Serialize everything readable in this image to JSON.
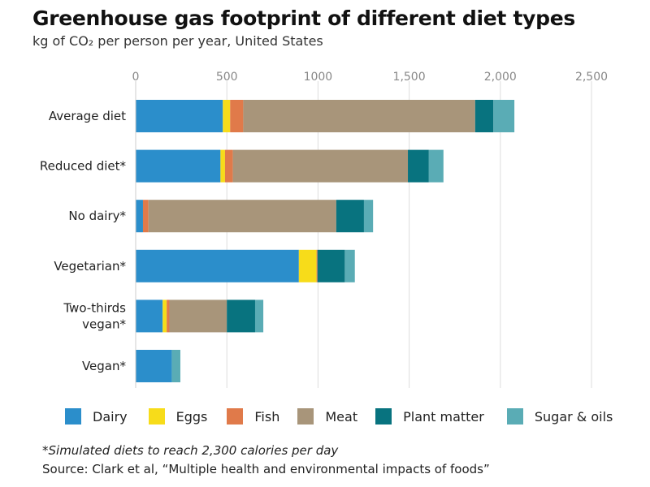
{
  "title": "Greenhouse gas footprint of different diet types",
  "subtitle": "kg of CO₂ per person per year, United States",
  "footnote": "*Simulated diets to reach 2,300 calories per day",
  "source": "Source: Clark et al, “Multiple health and environmental impacts of foods”",
  "chart_data": {
    "type": "bar",
    "orientation": "horizontal",
    "stacked": true,
    "title": "Greenhouse gas footprint of different diet types",
    "subtitle": "kg of CO₂ per person per year, United States",
    "xlim": [
      0,
      2500
    ],
    "x_ticks": [
      0,
      500,
      1000,
      1500,
      2000,
      2500
    ],
    "x_tick_labels": [
      "0",
      "500",
      "1000",
      "1,500",
      "2,000",
      "2,500"
    ],
    "x_axis_position": "top",
    "grid": "vertical",
    "legend_position": "bottom",
    "categories": [
      [
        "Average diet"
      ],
      [
        "Reduced diet*"
      ],
      [
        "No dairy*"
      ],
      [
        "Vegetarian*"
      ],
      [
        "Two-thirds",
        "vegan*"
      ],
      [
        "Vegan*"
      ]
    ],
    "series": [
      {
        "name": "Dairy",
        "color": "#2b8ecb",
        "values": [
          478,
          465,
          40,
          895,
          148,
          198
        ]
      },
      {
        "name": "Eggs",
        "color": "#f7dc1a",
        "values": [
          40,
          25,
          0,
          97,
          22,
          0
        ]
      },
      {
        "name": "Fish",
        "color": "#e07a4a",
        "values": [
          72,
          43,
          30,
          5,
          15,
          0
        ]
      },
      {
        "name": "Meat",
        "color": "#a8957a",
        "values": [
          1272,
          960,
          1030,
          0,
          315,
          0
        ]
      },
      {
        "name": "Plant matter",
        "color": "#08737f",
        "values": [
          100,
          115,
          152,
          150,
          155,
          0
        ]
      },
      {
        "name": "Sugar & oils",
        "color": "#5aacb5",
        "values": [
          115,
          80,
          50,
          55,
          45,
          47
        ]
      }
    ]
  }
}
